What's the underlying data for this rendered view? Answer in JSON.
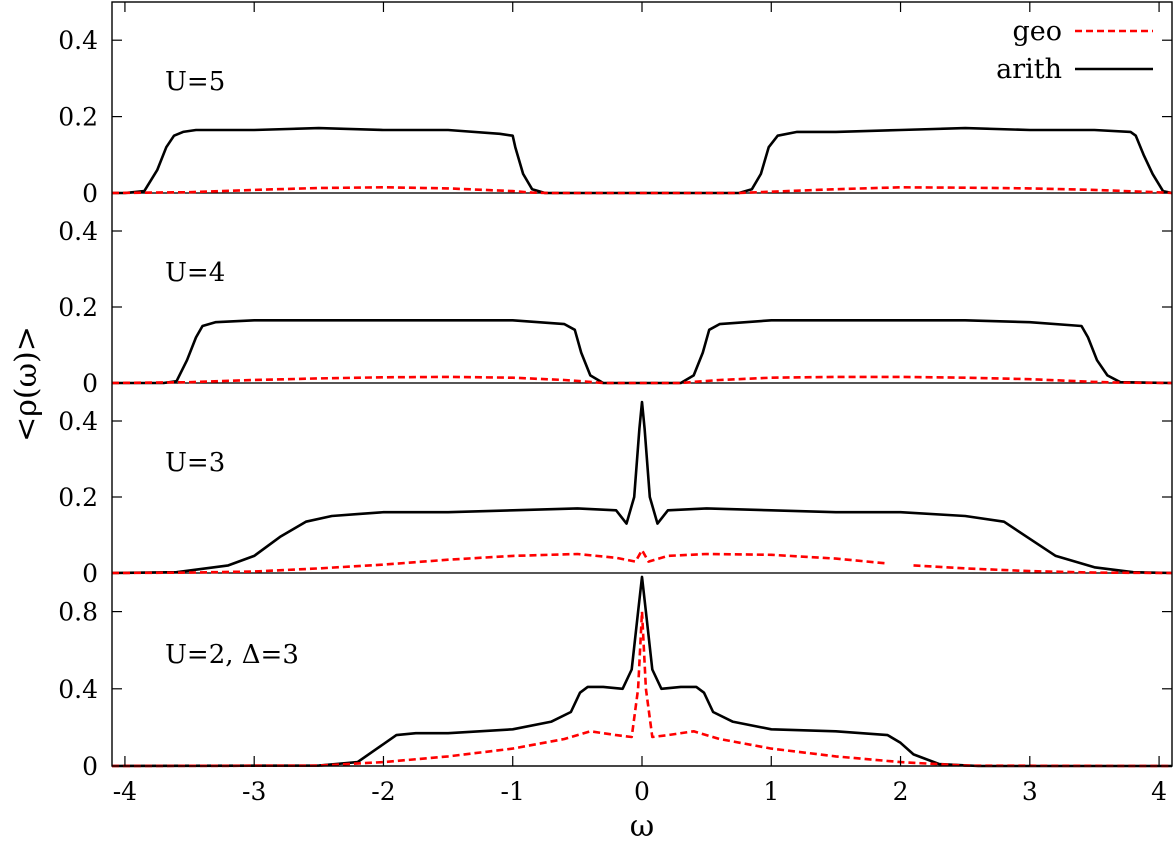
{
  "chart_data": {
    "type": "line",
    "xlabel": "ω",
    "ylabel": "<ρ(ω)>",
    "xlim": [
      -4.1,
      4.1
    ],
    "x_ticks": [
      -4,
      -3,
      -2,
      -1,
      0,
      1,
      2,
      3,
      4
    ],
    "grid": false,
    "legend": {
      "placement": "top-right",
      "entries": [
        {
          "name": "geo",
          "color": "#ff0000",
          "style": "dashed"
        },
        {
          "name": "arith",
          "color": "#000000",
          "style": "solid"
        }
      ]
    },
    "panels": [
      {
        "label": "U=5",
        "ylim": [
          0,
          0.5
        ],
        "y_ticks": [
          0,
          0.2,
          0.4
        ],
        "y_tick_labels": [
          "0",
          "0.2",
          "0.4"
        ],
        "series": [
          {
            "name": "arith",
            "x": [
              -4.1,
              -4.0,
              -3.85,
              -3.75,
              -3.68,
              -3.62,
              -3.55,
              -3.45,
              -3.0,
              -2.5,
              -2.0,
              -1.5,
              -1.1,
              -1.0,
              -0.98,
              -0.92,
              -0.85,
              -0.75,
              0,
              0.75,
              0.85,
              0.92,
              0.98,
              1.05,
              1.2,
              1.5,
              2.0,
              2.5,
              3.0,
              3.5,
              3.78,
              3.82,
              3.88,
              3.95,
              4.03,
              4.1
            ],
            "y": [
              0,
              0,
              0.005,
              0.06,
              0.12,
              0.15,
              0.16,
              0.165,
              0.165,
              0.17,
              0.165,
              0.165,
              0.155,
              0.15,
              0.12,
              0.05,
              0.01,
              0,
              0,
              0,
              0.01,
              0.05,
              0.12,
              0.15,
              0.16,
              0.16,
              0.165,
              0.17,
              0.165,
              0.165,
              0.16,
              0.15,
              0.1,
              0.05,
              0.005,
              0
            ]
          },
          {
            "name": "geo",
            "x": [
              -4.1,
              -3.5,
              -3.0,
              -2.5,
              -2.0,
              -1.5,
              -1.0,
              -0.85,
              -0.7,
              0.75,
              0.9,
              1.5,
              2.0,
              2.5,
              3.0,
              3.5,
              4.05,
              4.1
            ],
            "y": [
              0,
              0.002,
              0.008,
              0.013,
              0.015,
              0.012,
              0.005,
              0.001,
              0,
              0,
              0.002,
              0.01,
              0.015,
              0.014,
              0.012,
              0.008,
              0.001,
              0
            ]
          }
        ]
      },
      {
        "label": "U=4",
        "ylim": [
          0,
          0.5
        ],
        "y_ticks": [
          0,
          0.2,
          0.4
        ],
        "y_tick_labels": [
          "0",
          "0.2",
          "0.4"
        ],
        "series": [
          {
            "name": "arith",
            "x": [
              -4.1,
              -3.7,
              -3.6,
              -3.52,
              -3.45,
              -3.4,
              -3.3,
              -3.0,
              -2.5,
              -2.0,
              -1.5,
              -1.0,
              -0.6,
              -0.52,
              -0.47,
              -0.4,
              -0.3,
              0,
              0.3,
              0.4,
              0.47,
              0.52,
              0.6,
              1.0,
              1.5,
              2.0,
              2.5,
              3.0,
              3.4,
              3.45,
              3.52,
              3.6,
              3.7,
              4.1
            ],
            "y": [
              0,
              0,
              0.005,
              0.06,
              0.12,
              0.15,
              0.16,
              0.165,
              0.165,
              0.165,
              0.165,
              0.165,
              0.155,
              0.14,
              0.08,
              0.02,
              0,
              0,
              0,
              0.02,
              0.08,
              0.14,
              0.155,
              0.165,
              0.165,
              0.165,
              0.165,
              0.16,
              0.15,
              0.12,
              0.06,
              0.02,
              0.002,
              0
            ]
          },
          {
            "name": "geo",
            "x": [
              -4.1,
              -3.5,
              -3.0,
              -2.5,
              -2.0,
              -1.5,
              -1.0,
              -0.6,
              -0.4,
              -0.3,
              0.3,
              0.4,
              0.6,
              1.0,
              1.5,
              2.0,
              2.5,
              3.0,
              3.5,
              3.7,
              4.1
            ],
            "y": [
              0,
              0.002,
              0.008,
              0.012,
              0.015,
              0.016,
              0.014,
              0.008,
              0.003,
              0,
              0,
              0.003,
              0.008,
              0.014,
              0.016,
              0.016,
              0.014,
              0.01,
              0.003,
              0.001,
              0
            ]
          }
        ]
      },
      {
        "label": "U=3",
        "ylim": [
          0,
          0.5
        ],
        "y_ticks": [
          0,
          0.2,
          0.4
        ],
        "y_tick_labels": [
          "0",
          "0.2",
          "0.4"
        ],
        "series": [
          {
            "name": "arith",
            "x": [
              -4.1,
              -3.6,
              -3.2,
              -3.0,
              -2.8,
              -2.6,
              -2.4,
              -2.2,
              -2.0,
              -1.5,
              -1.0,
              -0.5,
              -0.2,
              -0.12,
              -0.06,
              -0.02,
              0,
              0.02,
              0.06,
              0.12,
              0.2,
              0.5,
              1.0,
              1.5,
              2.0,
              2.5,
              2.8,
              3.0,
              3.2,
              3.5,
              3.8,
              4.1
            ],
            "y": [
              0,
              0.002,
              0.02,
              0.045,
              0.095,
              0.135,
              0.15,
              0.155,
              0.16,
              0.16,
              0.165,
              0.17,
              0.165,
              0.13,
              0.2,
              0.38,
              0.45,
              0.38,
              0.2,
              0.13,
              0.165,
              0.17,
              0.165,
              0.16,
              0.16,
              0.15,
              0.135,
              0.09,
              0.045,
              0.015,
              0.002,
              0
            ]
          },
          {
            "name": "geo",
            "x": [
              -4.1,
              -3.5,
              -3.0,
              -2.5,
              -2.0,
              -1.5,
              -1.0,
              -0.5,
              -0.2,
              -0.05,
              0,
              0.05,
              0.2,
              0.5,
              1.0,
              1.5,
              1.9
            ],
            "y": [
              0,
              0.001,
              0.004,
              0.012,
              0.022,
              0.035,
              0.045,
              0.05,
              0.04,
              0.03,
              0.06,
              0.03,
              0.045,
              0.05,
              0.048,
              0.038,
              0.025
            ]
          },
          {
            "name": "geo",
            "x": [
              2.1,
              2.5,
              3.0,
              3.5,
              4.1
            ],
            "y": [
              0.02,
              0.012,
              0.005,
              0.001,
              0
            ]
          }
        ]
      },
      {
        "label": "U=2, Δ=3",
        "ylim": [
          0,
          1.0
        ],
        "y_ticks": [
          0,
          0.4,
          0.8
        ],
        "y_tick_labels": [
          "0",
          "0.4",
          "0.8"
        ],
        "series": [
          {
            "name": "arith",
            "x": [
              -4.1,
              -2.5,
              -2.2,
              -2.05,
              -1.9,
              -1.75,
              -1.5,
              -1.0,
              -0.7,
              -0.55,
              -0.48,
              -0.42,
              -0.3,
              -0.15,
              -0.08,
              -0.03,
              0,
              0.03,
              0.08,
              0.15,
              0.3,
              0.42,
              0.48,
              0.55,
              0.7,
              1.0,
              1.5,
              1.9,
              2.0,
              2.1,
              2.3,
              2.6,
              4.1
            ],
            "y": [
              0,
              0.002,
              0.02,
              0.09,
              0.16,
              0.17,
              0.17,
              0.19,
              0.23,
              0.28,
              0.38,
              0.41,
              0.41,
              0.4,
              0.5,
              0.8,
              0.98,
              0.8,
              0.5,
              0.4,
              0.41,
              0.41,
              0.38,
              0.28,
              0.23,
              0.19,
              0.18,
              0.16,
              0.12,
              0.06,
              0.01,
              0,
              0
            ]
          },
          {
            "name": "geo",
            "x": [
              -4.1,
              -2.5,
              -2.0,
              -1.5,
              -1.0,
              -0.6,
              -0.4,
              -0.2,
              -0.08,
              -0.03,
              0,
              0.03,
              0.08,
              0.2,
              0.4,
              0.6,
              1.0,
              1.5,
              2.0,
              2.5,
              4.1
            ],
            "y": [
              0,
              0.002,
              0.02,
              0.05,
              0.09,
              0.14,
              0.18,
              0.16,
              0.15,
              0.4,
              0.8,
              0.4,
              0.15,
              0.16,
              0.18,
              0.14,
              0.09,
              0.05,
              0.02,
              0.002,
              0
            ]
          }
        ]
      }
    ]
  }
}
